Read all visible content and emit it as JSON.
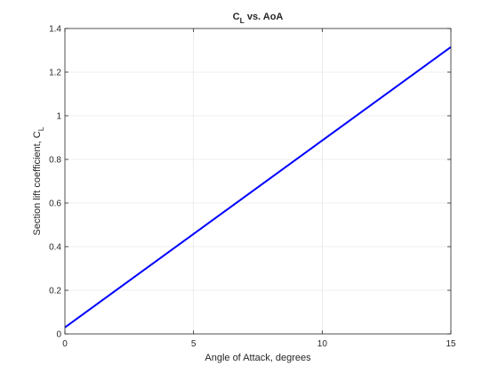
{
  "chart_data": {
    "type": "line",
    "title": "C",
    "title_sub": "L",
    "title_rest": " vs. AoA",
    "xlabel": "Angle of Attack, degrees",
    "ylabel": "Section lift coefficient, C",
    "ylabel_sub": "L",
    "xlim": [
      0,
      15
    ],
    "ylim": [
      0,
      1.4
    ],
    "xticks": [
      0,
      5,
      10,
      15
    ],
    "xtick_labels": [
      "0",
      "5",
      "10",
      "15"
    ],
    "yticks": [
      0,
      0.2,
      0.4,
      0.6,
      0.8,
      1.0,
      1.2,
      1.4
    ],
    "ytick_labels": [
      "0",
      "0.2",
      "0.4",
      "0.6",
      "0.8",
      "1",
      "1.2",
      "1.4"
    ],
    "grid": true,
    "series": [
      {
        "color": "#0000ff",
        "x": [
          0,
          15
        ],
        "y": [
          0.03,
          1.315
        ]
      }
    ]
  }
}
